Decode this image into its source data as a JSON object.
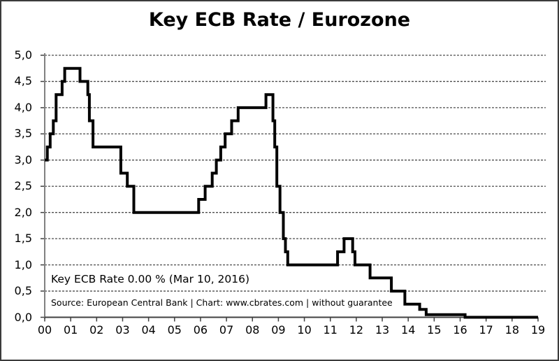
{
  "title": "Key ECB Rate / Eurozone",
  "annotation": {
    "rate_label": "Key ECB Rate 0.00 % (Mar 10, 2016)",
    "source_label": "Source: European Central Bank | Chart: www.cbrates.com | without guarantee"
  },
  "colors": {
    "line": "#000000",
    "y_axis": "#808080",
    "x_axis": "#404040",
    "grid": "#4d4d4d",
    "tick": "#404040",
    "border": "#3b3b3b",
    "background": "#ffffff",
    "text": "#000000"
  },
  "chart_data": {
    "type": "line",
    "style": "step-after",
    "title": "Key ECB Rate / Eurozone",
    "xlabel": "",
    "ylabel": "",
    "xlim": [
      2000,
      2019
    ],
    "ylim": [
      0,
      5
    ],
    "grid": "horizontal dashed",
    "legend": "none",
    "x_ticks": [
      "00",
      "01",
      "02",
      "03",
      "04",
      "05",
      "06",
      "07",
      "08",
      "09",
      "10",
      "11",
      "12",
      "13",
      "14",
      "15",
      "16",
      "17",
      "18",
      "19"
    ],
    "y_ticks": [
      "0,0",
      "0,5",
      "1,0",
      "1,5",
      "2,0",
      "2,5",
      "3,0",
      "3,5",
      "4,0",
      "4,5",
      "5,0"
    ],
    "series": [
      {
        "name": "Key ECB Rate (%)",
        "data": [
          [
            2000.0,
            3.0
          ],
          [
            2000.1,
            3.25
          ],
          [
            2000.21,
            3.5
          ],
          [
            2000.33,
            3.75
          ],
          [
            2000.44,
            4.25
          ],
          [
            2000.67,
            4.5
          ],
          [
            2000.77,
            4.75
          ],
          [
            2001.36,
            4.5
          ],
          [
            2001.66,
            4.25
          ],
          [
            2001.72,
            3.75
          ],
          [
            2001.86,
            3.25
          ],
          [
            2002.93,
            2.75
          ],
          [
            2003.18,
            2.5
          ],
          [
            2003.43,
            2.0
          ],
          [
            2005.93,
            2.25
          ],
          [
            2006.18,
            2.5
          ],
          [
            2006.45,
            2.75
          ],
          [
            2006.61,
            3.0
          ],
          [
            2006.78,
            3.25
          ],
          [
            2006.95,
            3.5
          ],
          [
            2007.2,
            3.75
          ],
          [
            2007.45,
            4.0
          ],
          [
            2008.52,
            4.25
          ],
          [
            2008.79,
            3.75
          ],
          [
            2008.86,
            3.25
          ],
          [
            2008.94,
            2.5
          ],
          [
            2009.06,
            2.0
          ],
          [
            2009.19,
            1.5
          ],
          [
            2009.27,
            1.25
          ],
          [
            2009.36,
            1.0
          ],
          [
            2011.28,
            1.25
          ],
          [
            2011.53,
            1.5
          ],
          [
            2011.86,
            1.25
          ],
          [
            2011.95,
            1.0
          ],
          [
            2012.53,
            0.75
          ],
          [
            2013.35,
            0.5
          ],
          [
            2013.87,
            0.25
          ],
          [
            2014.44,
            0.15
          ],
          [
            2014.69,
            0.05
          ],
          [
            2016.19,
            0.0
          ],
          [
            2019.0,
            0.0
          ]
        ]
      }
    ]
  }
}
